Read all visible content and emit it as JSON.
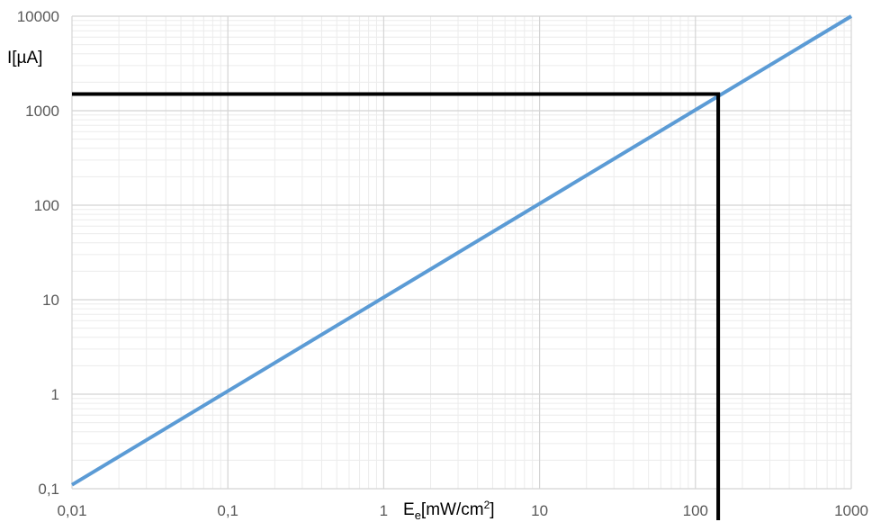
{
  "chart_data": {
    "type": "line",
    "x_scale": "log",
    "y_scale": "log",
    "xlim": [
      0.01,
      1000
    ],
    "ylim": [
      0.1,
      10000
    ],
    "x_ticks": [
      "0,01",
      "0,1",
      "1",
      "10",
      "100",
      "1000"
    ],
    "y_ticks": [
      "0,1",
      "1",
      "10",
      "100",
      "1000",
      "10000"
    ],
    "xlabel": {
      "main": "E",
      "sub": "e",
      "rest": "[mW/cm",
      "sup": "2",
      "end": "]"
    },
    "ylabel": "I[µA]",
    "grid": "major and minor",
    "series": [
      {
        "color": "#5b9bd5",
        "x": [
          0.01,
          1000
        ],
        "y": [
          0.11,
          10000
        ]
      }
    ],
    "reference_lines": {
      "color": "#000000",
      "horizontal_y": 1500,
      "vertical_x": 140
    }
  }
}
